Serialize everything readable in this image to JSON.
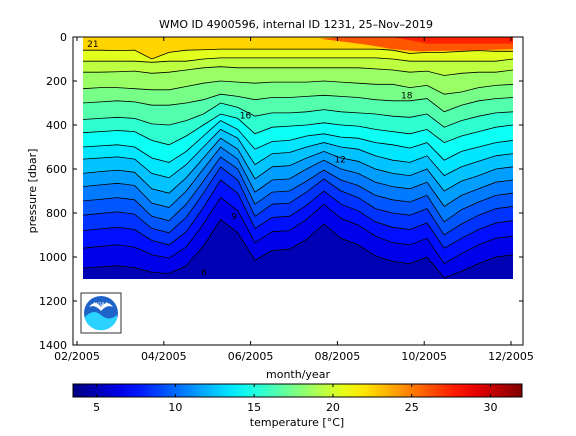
{
  "chart_data": {
    "type": "heatmap",
    "title": "WMO ID 4900596, internal ID 1231, 25–Nov–2019",
    "xlabel": "month/year",
    "ylabel": "pressure [dbar]",
    "colorbar_label_prefix": "temperature [",
    "colorbar_label_unit": "°C",
    "colorbar_label_suffix": "]",
    "x_tick_labels": [
      "02/2005",
      "04/2005",
      "06/2005",
      "08/2005",
      "10/2005",
      "12/2005"
    ],
    "y_ticks": [
      0,
      200,
      400,
      600,
      800,
      1000,
      1200,
      1400
    ],
    "y_range": [
      0,
      1400
    ],
    "y_inverted": true,
    "colorbar_ticks": [
      5,
      10,
      15,
      20,
      25,
      30
    ],
    "colorbar_range": [
      3.5,
      32
    ],
    "profile_max_depth": 1100,
    "colormap": "jet",
    "x_profile_fractions": [
      0,
      0.04,
      0.08,
      0.12,
      0.16,
      0.2,
      0.24,
      0.28,
      0.32,
      0.36,
      0.4,
      0.44,
      0.48,
      0.52,
      0.56,
      0.6,
      0.64,
      0.68,
      0.72,
      0.76,
      0.8,
      0.84,
      0.88,
      0.92,
      0.96,
      1.0
    ],
    "contour_levels": [
      {
        "level": 21,
        "depths": [
          60,
          60,
          62,
          60,
          100,
          70,
          60,
          58,
          55,
          55,
          55,
          55,
          55,
          55,
          55,
          55,
          55,
          55,
          60,
          75,
          70,
          70,
          65,
          62,
          65,
          65
        ]
      },
      {
        "level": 20,
        "depths": [
          110,
          110,
          110,
          110,
          115,
          110,
          110,
          100,
          95,
          95,
          95,
          95,
          95,
          95,
          95,
          95,
          95,
          95,
          100,
          110,
          110,
          110,
          110,
          110,
          110,
          100
        ]
      },
      {
        "level": 19,
        "depths": [
          160,
          160,
          158,
          155,
          165,
          160,
          150,
          140,
          135,
          140,
          140,
          140,
          140,
          140,
          140,
          140,
          140,
          145,
          150,
          160,
          155,
          175,
          165,
          160,
          160,
          150
        ]
      },
      {
        "level": 18,
        "depths": [
          235,
          230,
          230,
          235,
          240,
          240,
          225,
          210,
          200,
          205,
          210,
          205,
          205,
          205,
          200,
          205,
          210,
          215,
          215,
          230,
          220,
          260,
          250,
          230,
          220,
          215
        ]
      },
      {
        "level": 17,
        "depths": [
          300,
          295,
          290,
          295,
          310,
          310,
          300,
          285,
          260,
          270,
          285,
          275,
          275,
          270,
          265,
          270,
          275,
          285,
          290,
          290,
          280,
          340,
          310,
          290,
          280,
          275
        ]
      },
      {
        "level": 16,
        "depths": [
          375,
          370,
          365,
          370,
          395,
          400,
          380,
          350,
          300,
          320,
          360,
          345,
          345,
          340,
          330,
          340,
          345,
          350,
          360,
          365,
          350,
          410,
          380,
          360,
          345,
          340
        ]
      },
      {
        "level": 15,
        "depths": [
          435,
          430,
          425,
          430,
          470,
          490,
          450,
          400,
          350,
          370,
          440,
          410,
          405,
          400,
          390,
          400,
          405,
          420,
          430,
          440,
          420,
          480,
          450,
          430,
          410,
          400
        ]
      },
      {
        "level": 14,
        "depths": [
          500,
          495,
          490,
          500,
          550,
          570,
          520,
          450,
          380,
          420,
          510,
          475,
          470,
          450,
          440,
          455,
          460,
          480,
          490,
          505,
          480,
          560,
          520,
          500,
          480,
          470
        ]
      },
      {
        "level": 13,
        "depths": [
          555,
          550,
          545,
          555,
          620,
          640,
          580,
          500,
          420,
          460,
          580,
          530,
          525,
          500,
          480,
          500,
          510,
          540,
          560,
          570,
          540,
          630,
          590,
          565,
          540,
          530
        ]
      },
      {
        "level": 12,
        "depths": [
          620,
          612,
          605,
          615,
          690,
          710,
          640,
          550,
          460,
          510,
          645,
          590,
          585,
          550,
          520,
          550,
          565,
          600,
          620,
          630,
          600,
          700,
          655,
          630,
          600,
          590
        ]
      },
      {
        "level": 11,
        "depths": [
          680,
          672,
          665,
          675,
          755,
          775,
          700,
          600,
          500,
          555,
          705,
          650,
          645,
          600,
          560,
          600,
          620,
          660,
          680,
          690,
          660,
          770,
          720,
          690,
          660,
          650
        ]
      },
      {
        "level": 10,
        "depths": [
          745,
          738,
          730,
          740,
          815,
          835,
          760,
          655,
          545,
          600,
          760,
          705,
          700,
          655,
          605,
          650,
          675,
          720,
          740,
          750,
          720,
          840,
          785,
          750,
          720,
          710
        ]
      },
      {
        "level": 9,
        "depths": [
          810,
          802,
          795,
          805,
          870,
          890,
          820,
          710,
          590,
          650,
          815,
          760,
          755,
          705,
          645,
          700,
          730,
          780,
          800,
          810,
          780,
          900,
          850,
          810,
          780,
          770
        ]
      },
      {
        "level": 8,
        "depths": [
          880,
          872,
          865,
          875,
          925,
          945,
          885,
          775,
          650,
          710,
          870,
          820,
          815,
          765,
          700,
          760,
          790,
          840,
          865,
          875,
          845,
          960,
          915,
          875,
          845,
          835
        ]
      },
      {
        "level": 7,
        "depths": [
          960,
          952,
          945,
          955,
          990,
          1005,
          955,
          850,
          730,
          790,
          935,
          885,
          880,
          830,
          760,
          825,
          855,
          905,
          935,
          945,
          915,
          1030,
          985,
          945,
          915,
          905
        ]
      },
      {
        "level": 6,
        "depths": [
          1050,
          1045,
          1040,
          1048,
          1070,
          1075,
          1040,
          950,
          830,
          890,
          1015,
          970,
          965,
          920,
          850,
          915,
          945,
          995,
          1020,
          1030,
          1000,
          1095,
          1065,
          1030,
          1000,
          990
        ]
      }
    ],
    "contour_labels": [
      {
        "text": "21",
        "x_fraction": 0.005,
        "depth": 45
      },
      {
        "text": "18",
        "x_fraction": 0.735,
        "depth": 280
      },
      {
        "text": "16",
        "x_fraction": 0.36,
        "depth": 370
      },
      {
        "text": "12",
        "x_fraction": 0.58,
        "depth": 570
      },
      {
        "text": "9",
        "x_fraction": 0.34,
        "depth": 830
      },
      {
        "text": "6",
        "x_fraction": 0.27,
        "depth": 1085
      }
    ],
    "warm_surface_fractions": [
      0.7,
      1.0
    ],
    "logo_alt": "NOAA"
  }
}
